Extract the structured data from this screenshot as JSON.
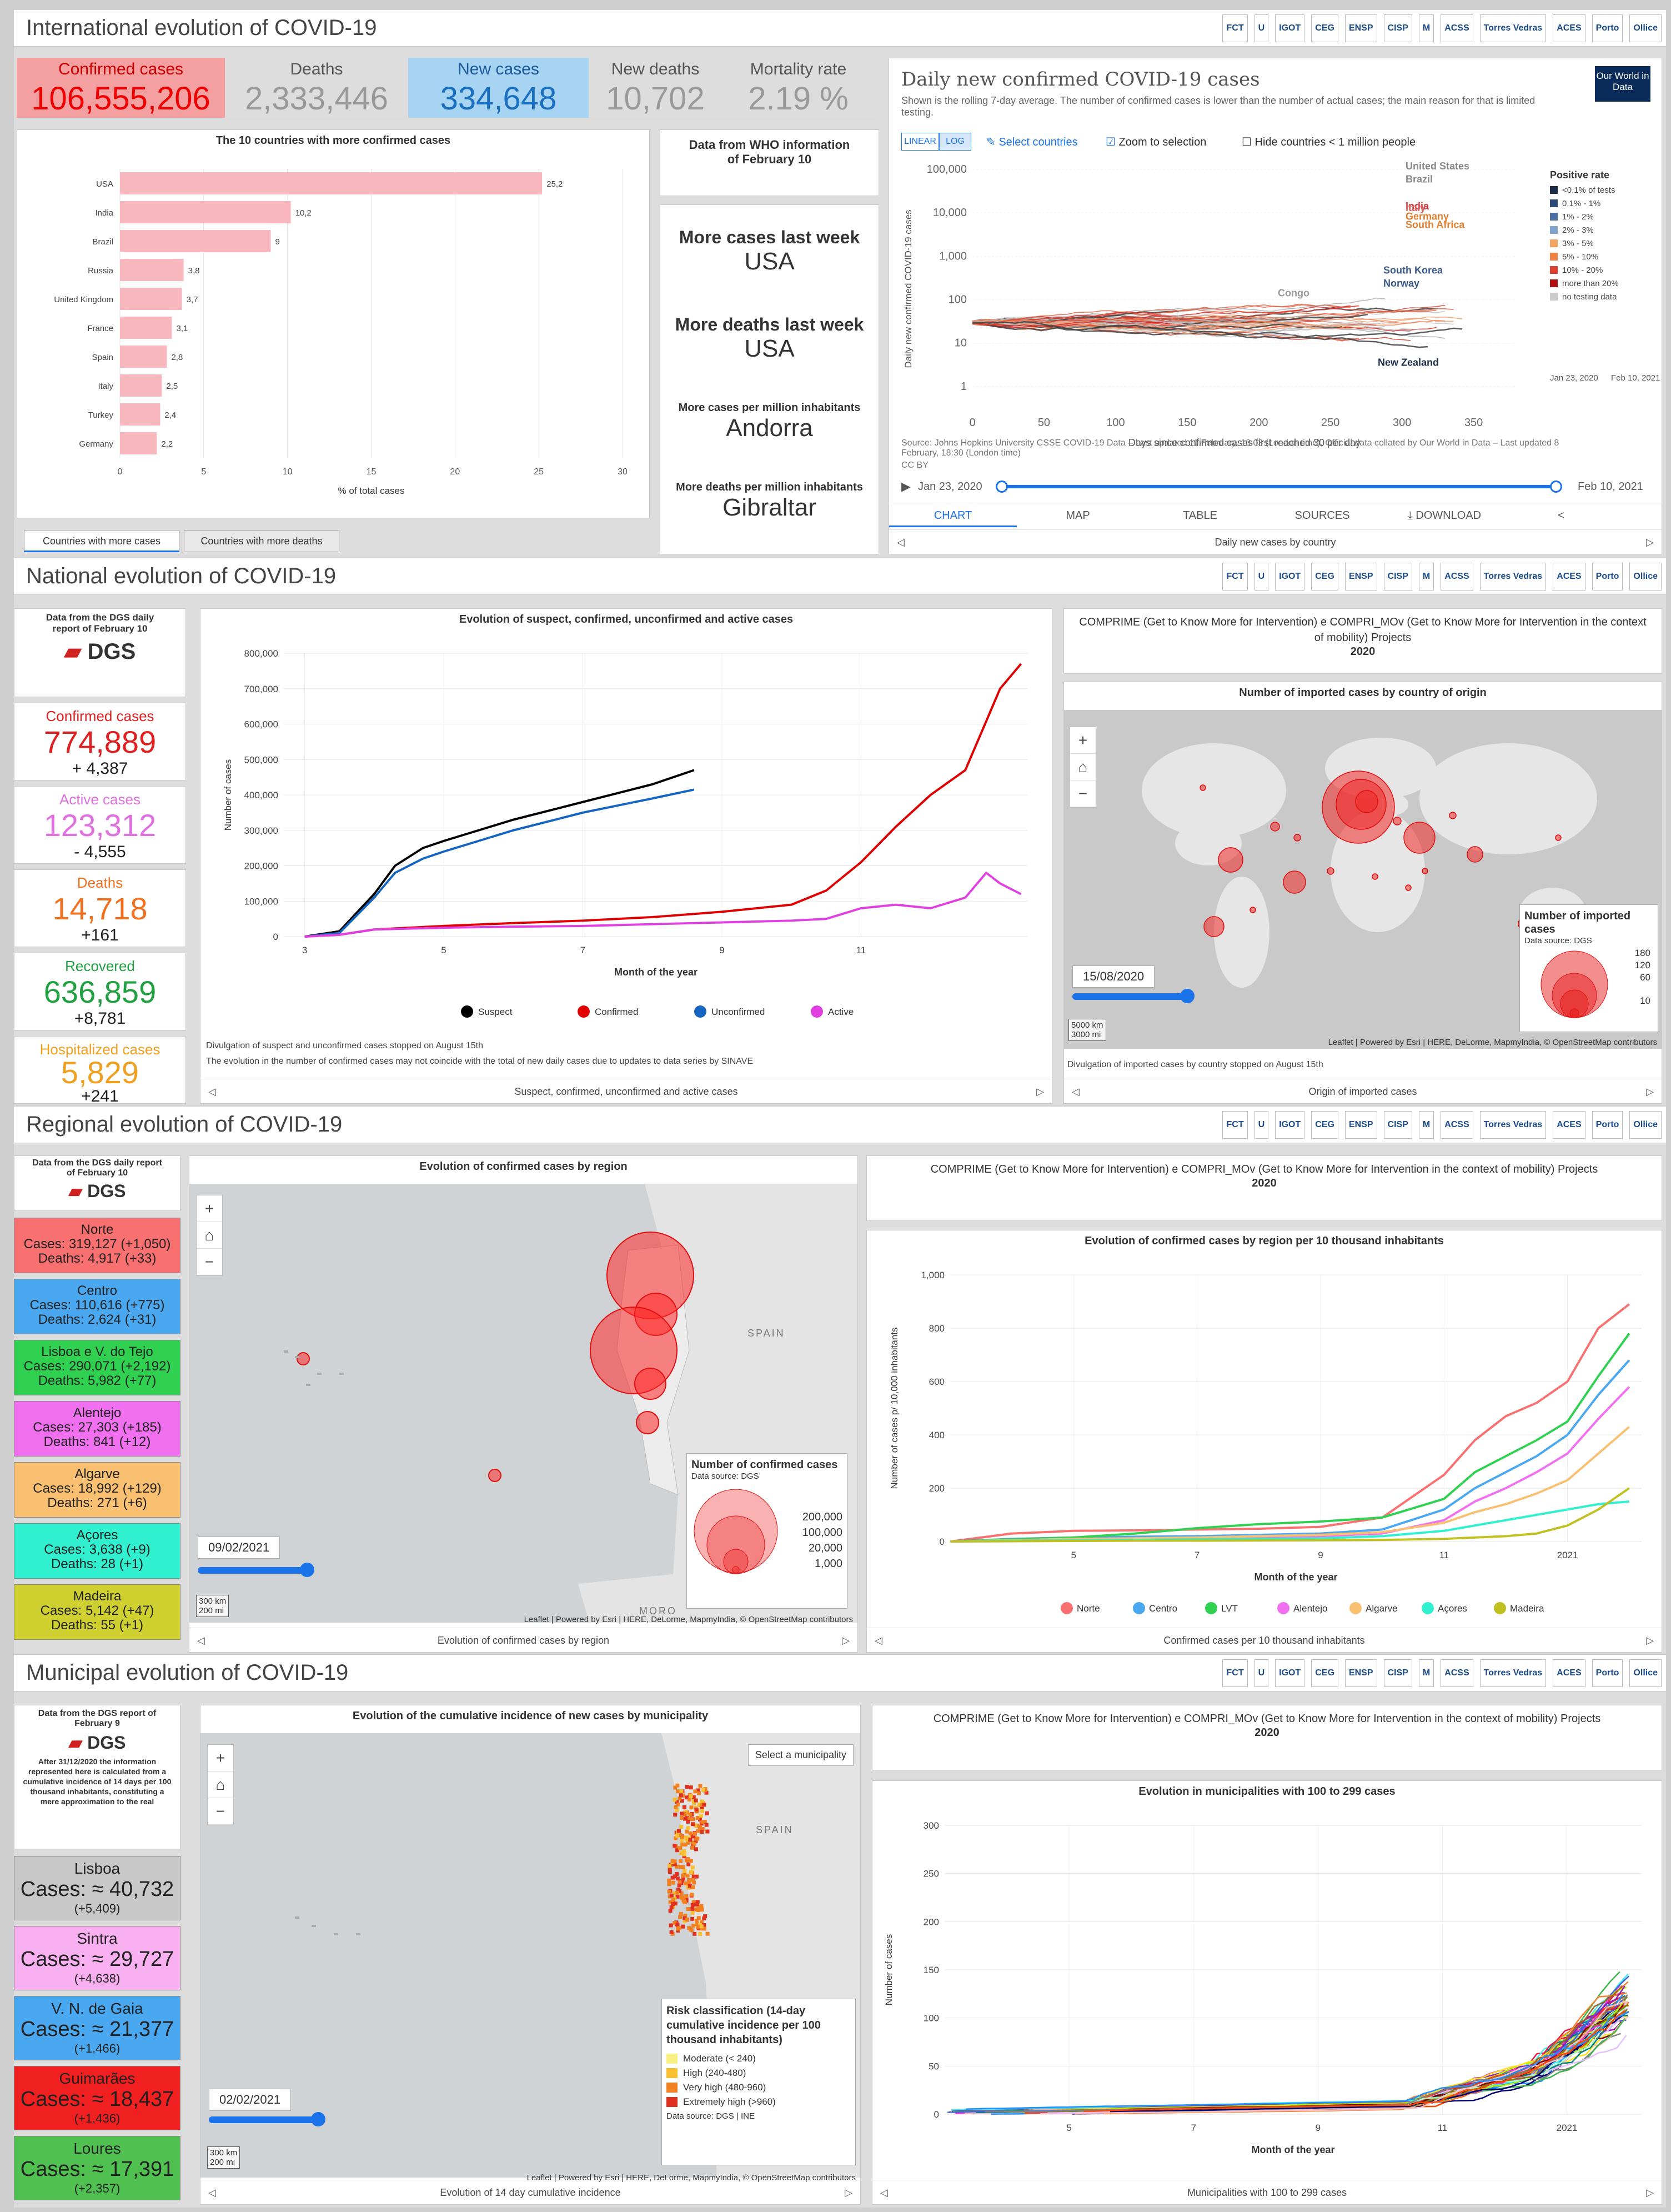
{
  "logos": [
    "FCT",
    "U",
    "IGOT",
    "CEG",
    "ENSP",
    "CISP",
    "M",
    "ACSS",
    "Torres Vedras",
    "ACES",
    "Porto",
    "Ollice"
  ],
  "intl": {
    "title": "International evolution of COVID-19",
    "kpis": [
      {
        "label": "Confirmed cases",
        "value": "106,555,206"
      },
      {
        "label": "Deaths",
        "value": "2,333,446"
      },
      {
        "label": "New cases",
        "value": "334,648"
      },
      {
        "label": "New deaths",
        "value": "10,702"
      },
      {
        "label": "Mortality rate",
        "value": "2.19 %"
      }
    ],
    "bar": {
      "title": "The 10 countries with more confirmed cases",
      "xlabel": "% of total cases",
      "ticks": [
        "0",
        "5",
        "10",
        "15",
        "20",
        "25",
        "30"
      ]
    },
    "tabs": [
      "Countries with more cases",
      "Countries with more deaths"
    ],
    "who": "Data from WHO information of February 10",
    "facts": [
      {
        "label": "More cases last week",
        "value": "USA"
      },
      {
        "label": "More deaths last week",
        "value": "USA"
      },
      {
        "label": "More cases per million inhabitants",
        "value": "Andorra"
      },
      {
        "label": "More deaths per million inhabitants",
        "value": "Gibraltar"
      }
    ],
    "owid": {
      "title": "Daily new confirmed COVID-19 cases",
      "subtitle": "Shown is the rolling 7-day average. The number of confirmed cases is lower than the number of actual cases; the main reason for that is limited testing.",
      "brand": "Our World in Data",
      "linear": "LINEAR",
      "log": "LOG",
      "select": "Select countries",
      "zoom": "Zoom to selection",
      "hide": "Hide countries < 1 million people",
      "ylabel": "Daily new confirmed COVID-19 cases",
      "xlabel": "Days since confirmed cases first reached 30 per day",
      "yticks": [
        "100,000",
        "10,000",
        "1,000",
        "100",
        "10",
        "1"
      ],
      "xticks": [
        "0",
        "50",
        "100",
        "150",
        "200",
        "250",
        "300",
        "350"
      ],
      "legend_title": "Positive rate",
      "legend": [
        "<0.1% of tests",
        "0.1% - 1%",
        "1% - 2%",
        "2% - 3%",
        "3% - 5%",
        "5% - 10%",
        "10% - 20%",
        "more than 20%",
        "no testing data"
      ],
      "legend_colors": [
        "#1c2d4a",
        "#2c4a7a",
        "#4a6fa5",
        "#7fa3cc",
        "#f4a460",
        "#f08040",
        "#e04030",
        "#b01010",
        "#cccccc"
      ],
      "countries": [
        "United States",
        "Brazil",
        "India",
        "Italy",
        "Germany",
        "South Africa",
        "South Korea",
        "Norway",
        "Congo",
        "New Zealand"
      ],
      "source": "Source: Johns Hopkins University CSSE COVID-19 Data – Last updated 11 February, 10:03 (London time), Official data collated by Our World in Data – Last updated 8 February, 18:30 (London time)",
      "ccby": "CC BY",
      "range_start": "Jan 23, 2020",
      "range_end": "Feb 10, 2021",
      "date_a": "Jan 23, 2020",
      "date_b": "Feb 10, 2021",
      "tabs": [
        "CHART",
        "MAP",
        "TABLE",
        "SOURCES",
        "DOWNLOAD"
      ],
      "footer": "Daily new cases by country"
    }
  },
  "national": {
    "title": "National evolution of COVID-19",
    "dgs": "Data from the DGS daily report of February 10",
    "dgs_logo": "DGS",
    "stats": [
      {
        "label": "Confirmed cases",
        "value": "774,889",
        "delta": "+ 4,387",
        "color": "#e02020"
      },
      {
        "label": "Active cases",
        "value": "123,312",
        "delta": "- 4,555",
        "color": "#e070e0"
      },
      {
        "label": "Deaths",
        "value": "14,718",
        "delta": "+161",
        "color": "#f07020"
      },
      {
        "label": "Recovered",
        "value": "636,859",
        "delta": "+8,781",
        "color": "#20a040"
      },
      {
        "label": "Hospitalized cases",
        "value": "5,829",
        "delta": "+241",
        "color": "#f0a020"
      }
    ],
    "chart_title": "Evolution of suspect, confirmed, unconfirmed and active cases",
    "ylabel": "Number of cases",
    "xlabel": "Month of the year",
    "legend": [
      "Suspect",
      "Confirmed",
      "Unconfirmed",
      "Active"
    ],
    "note1": "Divulgation of suspect and unconfirmed cases stopped on August 15th",
    "note2": "The evolution in the number of confirmed cases may not coincide with the total of new daily cases due to updates to data series by SINAVE",
    "footer": "Suspect, confirmed, unconfirmed and active cases",
    "compri": "COMPRIME (Get to Know More for Intervention) e COMPRI_MOv (Get to Know More for Intervention in the context of mobility) Projects",
    "year": "2020",
    "map_title": "Number of imported cases by country of origin",
    "map_date": "15/08/2020",
    "map_legend_title": "Number of imported cases",
    "map_source": "Data source: DGS",
    "map_legend_vals": [
      "180",
      "120",
      "60",
      "10"
    ],
    "scale": [
      "5000 km",
      "3000 mi"
    ],
    "attrib": "Leaflet | Powered by Esri | HERE, DeLorme, MapmyIndia, © OpenStreetMap contributors",
    "map_note": "Divulgation of imported cases by country stopped on August 15th",
    "map_footer": "Origin of imported cases"
  },
  "regional": {
    "title": "Regional evolution of COVID-19",
    "dgs": "Data from the DGS daily report of February 10",
    "regions": [
      {
        "name": "Norte",
        "cases": "Cases: 319,127 (+1,050)",
        "deaths": "Deaths: 4,917 (+33)",
        "color": "#f87070"
      },
      {
        "name": "Centro",
        "cases": "Cases: 110,616 (+775)",
        "deaths": "Deaths: 2,624 (+31)",
        "color": "#4aa8f0"
      },
      {
        "name": "Lisboa e V. do Tejo",
        "cases": "Cases: 290,071 (+2,192)",
        "deaths": "Deaths: 5,982 (+77)",
        "color": "#30d050"
      },
      {
        "name": "Alentejo",
        "cases": "Cases: 27,303 (+185)",
        "deaths": "Deaths: 841 (+12)",
        "color": "#f070f0"
      },
      {
        "name": "Algarve",
        "cases": "Cases: 18,992 (+129)",
        "deaths": "Deaths: 271 (+6)",
        "color": "#f8c070"
      },
      {
        "name": "Açores",
        "cases": "Cases: 3,638 (+9)",
        "deaths": "Deaths: 28 (+1)",
        "color": "#30f0d0"
      },
      {
        "name": "Madeira",
        "cases": "Cases: 5,142 (+47)",
        "deaths": "Deaths: 55 (+1)",
        "color": "#d0d030"
      }
    ],
    "map_title": "Evolution of confirmed cases by region",
    "map_date": "09/02/2021",
    "spain": "SPAIN",
    "morocco": "MORO",
    "legend_title": "Number of confirmed cases",
    "legend_source": "Data source: DGS",
    "legend_vals": [
      "200,000",
      "100,000",
      "20,000",
      "1,000"
    ],
    "scale": [
      "300 km",
      "200 mi"
    ],
    "attrib": "Leaflet | Powered by Esri | HERE, DeLorme, MapmyIndia, © OpenStreetMap contributors",
    "map_footer": "Evolution of confirmed cases by region",
    "compri": "COMPRIME (Get to Know More for Intervention) e COMPRI_MOv (Get to Know More for Intervention in the context of mobility) Projects",
    "year": "2020",
    "chart_title": "Evolution of confirmed cases by region per 10 thousand inhabitants",
    "ylabel": "Number of cases p/ 10,000 inhabitants",
    "xlabel": "Month of the year",
    "legend": [
      "Norte",
      "Centro",
      "LVT",
      "Alentejo",
      "Algarve",
      "Açores",
      "Madeira"
    ],
    "footer": "Confirmed cases per 10 thousand inhabitants"
  },
  "municipal": {
    "title": "Municipal evolution of COVID-19",
    "dgs": "Data from the DGS report of February 9",
    "note": "After 31/12/2020 the information represented here is calculated from a cumulative incidence of 14 days per 100 thousand inhabitants, constituting a mere approximation to the real",
    "muns": [
      {
        "name": "Lisboa",
        "cases": "Cases: ≈ 40,732",
        "delta": "(+5,409)",
        "color": "#c8c8c8"
      },
      {
        "name": "Sintra",
        "cases": "Cases: ≈ 29,727",
        "delta": "(+4,638)",
        "color": "#f8b0f0"
      },
      {
        "name": "V. N. de Gaia",
        "cases": "Cases: ≈ 21,377",
        "delta": "(+1,466)",
        "color": "#4aa8f0"
      },
      {
        "name": "Guimarães",
        "cases": "Cases: ≈ 18,437",
        "delta": "(+1,436)",
        "color": "#f02020"
      },
      {
        "name": "Loures",
        "cases": "Cases: ≈ 17,391",
        "delta": "(+2,357)",
        "color": "#50c050"
      }
    ],
    "map_title": "Evolution of the cumulative incidence of new cases by municipality",
    "select": "Select a municipality",
    "map_date": "02/02/2021",
    "spain": "SPAIN",
    "legend_title": "Risk classification (14-day cumulative incidence per 100 thousand inhabitants)",
    "legend": [
      {
        "label": "Moderate (< 240)",
        "color": "#f8f080"
      },
      {
        "label": "High (240-480)",
        "color": "#f8c030"
      },
      {
        "label": "Very high (480-960)",
        "color": "#f08020"
      },
      {
        "label": "Extremely high (>960)",
        "color": "#e03020"
      }
    ],
    "legend_source": "Data source: DGS | INE",
    "scale": [
      "300 km",
      "200 mi"
    ],
    "attrib": "Leaflet | Powered by Esri | HERE, DeLorme, MapmyIndia, © OpenStreetMap contributors",
    "map_footer": "Evolution of 14 day cumulative incidence",
    "compri": "COMPRIME (Get to Know More for Intervention) e COMPRI_MOv (Get to Know More for Intervention in the context of mobility) Projects",
    "year": "2020",
    "chart_title": "Evolution in municipalities with 100 to 299 cases",
    "ylabel": "Number of cases",
    "xlabel": "Month of the year",
    "footer": "Municipalities with 100 to 299 cases"
  },
  "chart_data": [
    {
      "type": "bar",
      "title": "The 10 countries with more confirmed cases",
      "categories": [
        "USA",
        "India",
        "Brazil",
        "Russia",
        "United Kingdom",
        "France",
        "Spain",
        "Italy",
        "Turkey",
        "Germany"
      ],
      "values": [
        25.2,
        10.2,
        9,
        3.8,
        3.7,
        3.1,
        2.8,
        2.5,
        2.4,
        2.2
      ],
      "labels": [
        "25,2",
        "10,2",
        "9",
        "3,8",
        "3,7",
        "3,1",
        "2,8",
        "2,5",
        "2,4",
        "2,2"
      ],
      "xlabel": "% of total cases",
      "xlim": [
        0,
        30
      ]
    },
    {
      "type": "line",
      "title": "Evolution of suspect, confirmed, unconfirmed and active cases",
      "x_label": "Month of the year",
      "y_label": "Number of cases",
      "xticks": [
        "3",
        "5",
        "7",
        "9",
        "11"
      ],
      "yticks": [
        "0",
        "100,000",
        "200,000",
        "300,000",
        "400,000",
        "500,000",
        "600,000",
        "700,000",
        "800,000"
      ],
      "ylim": [
        0,
        800000
      ],
      "series": [
        {
          "name": "Suspect",
          "color": "#000000",
          "x": [
            3,
            3.5,
            4,
            4.3,
            4.7,
            5,
            5.5,
            6,
            7,
            8,
            8.6
          ],
          "y": [
            0,
            15000,
            120000,
            200000,
            250000,
            270000,
            300000,
            330000,
            380000,
            430000,
            470000
          ]
        },
        {
          "name": "Confirmed",
          "color": "#e00000",
          "x": [
            3,
            3.5,
            4,
            5,
            6,
            7,
            8,
            9,
            10,
            10.5,
            11,
            11.5,
            12,
            12.5,
            13,
            13.3
          ],
          "y": [
            0,
            5000,
            20000,
            30000,
            38000,
            45000,
            55000,
            70000,
            90000,
            130000,
            210000,
            310000,
            400000,
            470000,
            700000,
            770000
          ]
        },
        {
          "name": "Unconfirmed",
          "color": "#1565c0",
          "x": [
            3,
            3.5,
            4,
            4.3,
            4.7,
            5,
            5.5,
            6,
            7,
            8,
            8.6
          ],
          "y": [
            0,
            10000,
            110000,
            180000,
            220000,
            240000,
            270000,
            300000,
            350000,
            390000,
            415000
          ]
        },
        {
          "name": "Active",
          "color": "#e040e0",
          "x": [
            3,
            3.5,
            4,
            5,
            6,
            7,
            8,
            9,
            10,
            10.5,
            11,
            11.5,
            12,
            12.5,
            12.8,
            13,
            13.3
          ],
          "y": [
            0,
            5000,
            20000,
            25000,
            28000,
            30000,
            35000,
            40000,
            45000,
            50000,
            80000,
            90000,
            80000,
            110000,
            180000,
            150000,
            120000
          ]
        }
      ]
    },
    {
      "type": "line",
      "title": "Evolution of confirmed cases by region per 10 thousand inhabitants",
      "x_label": "Month of the year",
      "y_label": "Number of cases p/ 10,000 inhabitants",
      "xticks": [
        "5",
        "7",
        "9",
        "11",
        "2021"
      ],
      "yticks": [
        "0",
        "200",
        "400",
        "600",
        "800",
        "1,000"
      ],
      "ylim": [
        0,
        1000
      ],
      "series": [
        {
          "name": "Norte",
          "color": "#f87070",
          "x": [
            3,
            4,
            5,
            6,
            7,
            8,
            9,
            10,
            11,
            11.5,
            12,
            12.5,
            13,
            13.5,
            14
          ],
          "y": [
            0,
            30,
            40,
            42,
            45,
            48,
            55,
            90,
            250,
            380,
            470,
            520,
            600,
            800,
            890
          ]
        },
        {
          "name": "Centro",
          "color": "#4aa8f0",
          "x": [
            3,
            4,
            5,
            6,
            7,
            8,
            9,
            10,
            11,
            11.5,
            12,
            12.5,
            13,
            13.5,
            14
          ],
          "y": [
            0,
            10,
            15,
            18,
            20,
            25,
            30,
            45,
            120,
            200,
            260,
            320,
            400,
            550,
            680
          ]
        },
        {
          "name": "LVT",
          "color": "#30d050",
          "x": [
            3,
            4,
            5,
            6,
            7,
            8,
            9,
            10,
            11,
            11.5,
            12,
            12.5,
            13,
            13.5,
            14
          ],
          "y": [
            0,
            8,
            15,
            30,
            50,
            65,
            75,
            90,
            160,
            260,
            320,
            380,
            450,
            620,
            780
          ]
        },
        {
          "name": "Alentejo",
          "color": "#f070f0",
          "x": [
            3,
            4,
            5,
            6,
            7,
            8,
            9,
            10,
            11,
            11.5,
            12,
            12.5,
            13,
            13.5,
            14
          ],
          "y": [
            0,
            3,
            5,
            8,
            12,
            15,
            20,
            30,
            80,
            150,
            200,
            260,
            330,
            460,
            580
          ]
        },
        {
          "name": "Algarve",
          "color": "#f8c070",
          "x": [
            3,
            4,
            5,
            6,
            7,
            8,
            9,
            10,
            11,
            11.5,
            12,
            12.5,
            13,
            13.5,
            14
          ],
          "y": [
            0,
            5,
            10,
            12,
            15,
            20,
            25,
            35,
            70,
            110,
            140,
            180,
            230,
            330,
            430
          ]
        },
        {
          "name": "Açores",
          "color": "#30f0d0",
          "x": [
            3,
            4,
            5,
            6,
            7,
            8,
            9,
            10,
            11,
            11.5,
            12,
            12.5,
            13,
            13.5,
            14
          ],
          "y": [
            0,
            3,
            5,
            6,
            8,
            10,
            12,
            20,
            40,
            60,
            80,
            100,
            120,
            140,
            150
          ]
        },
        {
          "name": "Madeira",
          "color": "#c0c020",
          "x": [
            3,
            4,
            5,
            6,
            7,
            8,
            9,
            10,
            11,
            11.5,
            12,
            12.5,
            13,
            13.5,
            14
          ],
          "y": [
            0,
            1,
            2,
            3,
            3,
            4,
            5,
            6,
            10,
            15,
            20,
            30,
            60,
            120,
            200
          ]
        }
      ]
    },
    {
      "type": "line",
      "title": "Evolution in municipalities with 100 to 299 cases",
      "x_label": "Month of the year",
      "y_label": "Number of cases",
      "xticks": [
        "5",
        "7",
        "9",
        "11",
        "2021"
      ],
      "yticks": [
        "0",
        "50",
        "100",
        "150",
        "200",
        "250",
        "300"
      ],
      "ylim": [
        0,
        300
      ]
    }
  ]
}
